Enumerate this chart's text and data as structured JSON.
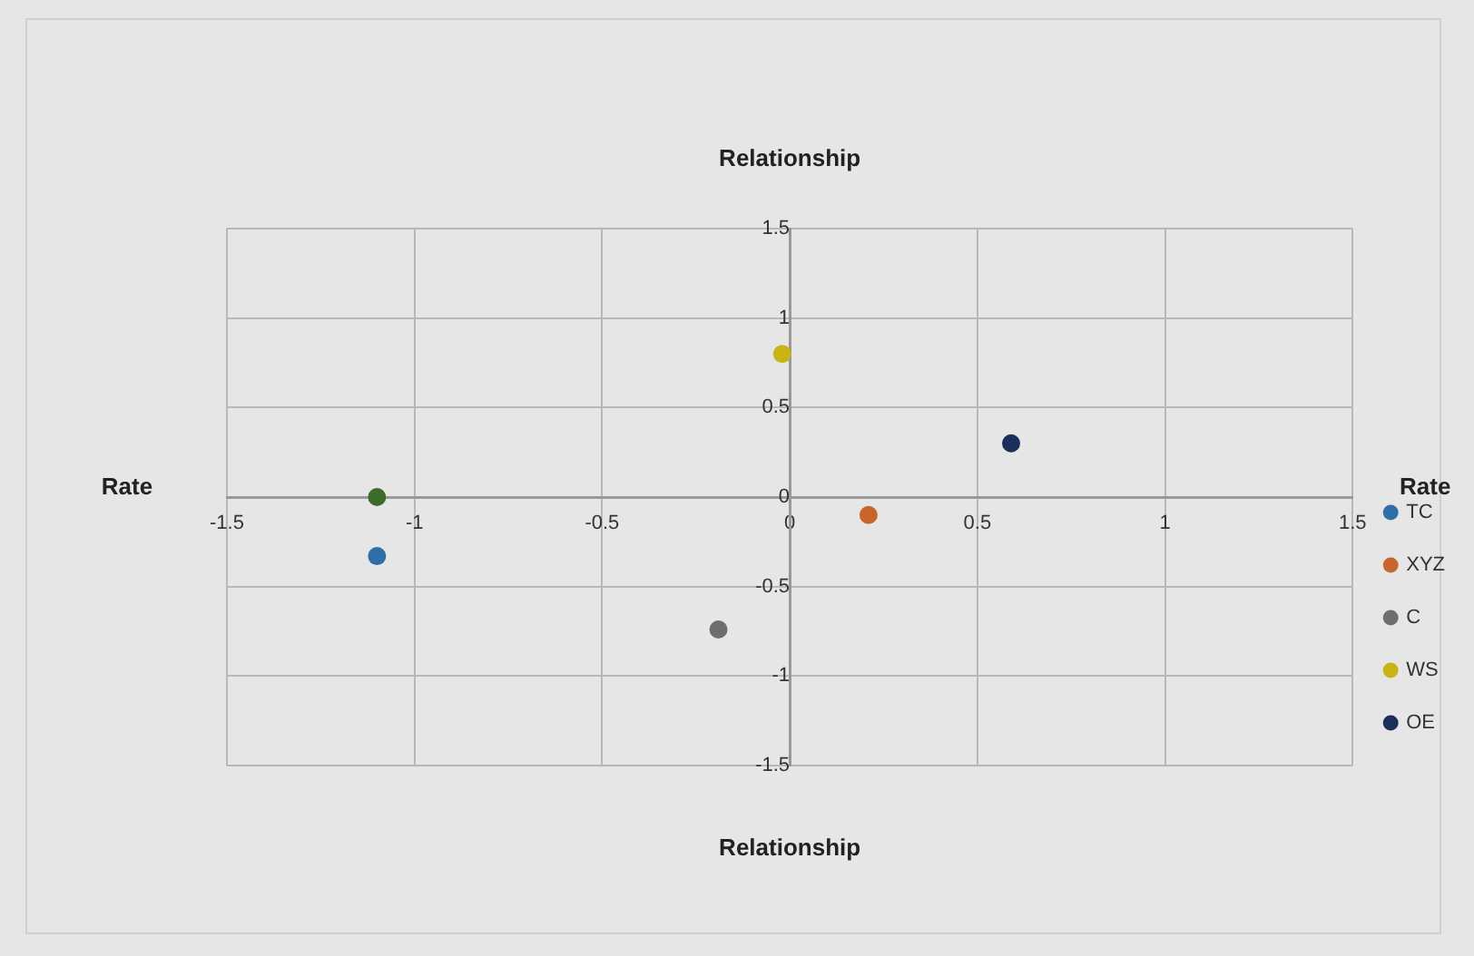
{
  "chart_data": {
    "type": "scatter",
    "title": "Relationship",
    "xlabel": "Relationship",
    "ylabel": "Rate",
    "annotations": [
      "Rate"
    ],
    "xlim": [
      -1.5,
      1.5
    ],
    "xticks": [
      -1.5,
      -1,
      -0.5,
      0,
      0.5,
      1,
      1.5
    ],
    "ylim": [
      -1.5,
      1.5
    ],
    "yticks": [
      -1.5,
      -1,
      -0.5,
      0,
      0.5,
      1,
      1.5
    ],
    "grid": true,
    "legend": "right",
    "marker": "circle",
    "series": [
      {
        "name": "TC",
        "color": "#2e6fa8",
        "x": [
          -1.1
        ],
        "values": [
          -0.33
        ]
      },
      {
        "name": "XYZ",
        "color": "#c8652a",
        "x": [
          0.21
        ],
        "values": [
          -0.1
        ]
      },
      {
        "name": "C",
        "color": "#6e6e6e",
        "x": [
          -0.19
        ],
        "values": [
          -0.74
        ]
      },
      {
        "name": "WS",
        "color": "#c9b414",
        "x": [
          -0.02
        ],
        "values": [
          0.8
        ]
      },
      {
        "name": "OE",
        "color": "#1c2f5c",
        "x": [
          0.59
        ],
        "values": [
          0.3
        ]
      },
      {
        "color": "#3d6b2c",
        "x": [
          -1.1
        ],
        "values": [
          0
        ]
      }
    ]
  }
}
